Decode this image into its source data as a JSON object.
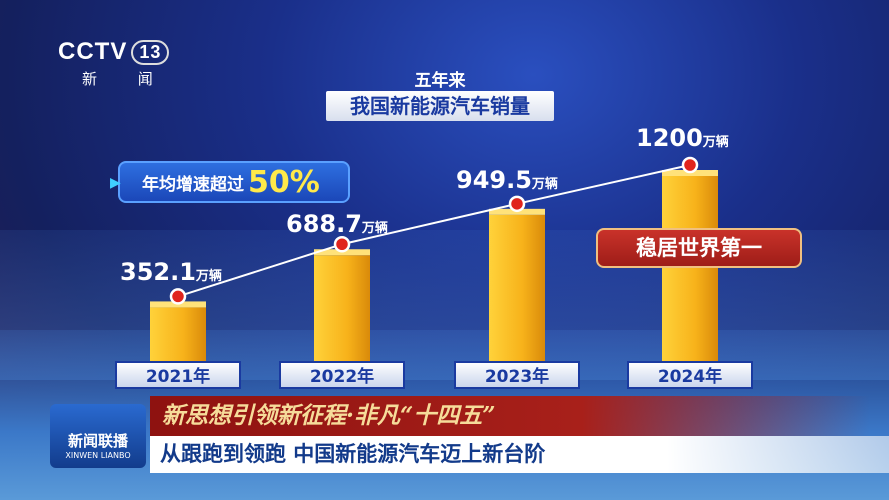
{
  "broadcaster": {
    "logo": "CCTV",
    "channel": "13",
    "channel_name": "新 闻"
  },
  "program": {
    "logo_cn": "新闻联播",
    "logo_en": "XINWEN LIANBO"
  },
  "ticker": {
    "series_title": "新思想引领新征程·非凡“十四五”",
    "headline": "从跟跑到领跑 中国新能源汽车迈上新台阶"
  },
  "chart_data": {
    "type": "bar",
    "title": "五年来",
    "subtitle": "我国新能源汽车销量",
    "categories": [
      "2021年",
      "2022年",
      "2023年",
      "2024年"
    ],
    "values": [
      352.1,
      688.7,
      949.5,
      1200
    ],
    "value_labels": [
      "352.1",
      "688.7",
      "949.5",
      "1200"
    ],
    "unit": "万辆",
    "line_overlay": true,
    "annotations": {
      "growth_prefix": "年均增速超过",
      "growth_value": "50%",
      "rank": "稳居世界第一"
    },
    "colors": {
      "bar": "#f7b21a",
      "dot": "#e0241c",
      "line": "#ffffff"
    }
  }
}
